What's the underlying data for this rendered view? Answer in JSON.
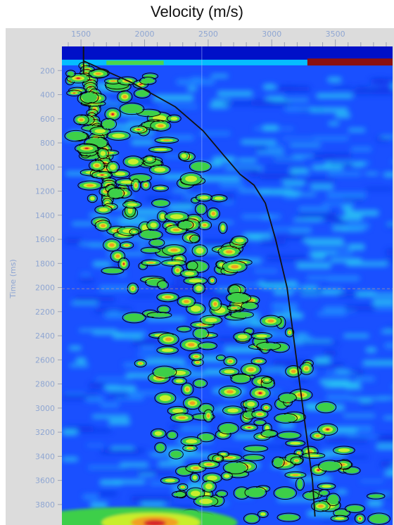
{
  "chart_data": {
    "type": "heatmap",
    "title": "Velocity (m/s)",
    "ylabel": "Time (ms)",
    "xlim": [
      1350,
      3950
    ],
    "ylim": [
      0,
      3970
    ],
    "x_ticks": [
      "1500",
      "2000",
      "2500",
      "3000",
      "3500"
    ],
    "y_ticks": [
      "200",
      "400",
      "600",
      "800",
      "1000",
      "1200",
      "1400",
      "1600",
      "1800",
      "2000",
      "2200",
      "2400",
      "2600",
      "2800",
      "3000",
      "3200",
      "3400",
      "3600",
      "3800"
    ],
    "picked_velocity_curve": {
      "time_ms": [
        120,
        300,
        500,
        700,
        900,
        1060,
        1150,
        1300,
        1600,
        2000,
        2400,
        2800,
        3200,
        3600,
        3900
      ],
      "velocity_ms": [
        1520,
        1900,
        2240,
        2460,
        2620,
        2750,
        2860,
        2950,
        3030,
        3120,
        3170,
        3220,
        3270,
        3320,
        3340
      ]
    },
    "colors": {
      "background": "#1a50ff",
      "top_band": "#0010c8",
      "contour": "#050505",
      "curve": "#111111",
      "axis_label": "#8fa6d2"
    }
  }
}
